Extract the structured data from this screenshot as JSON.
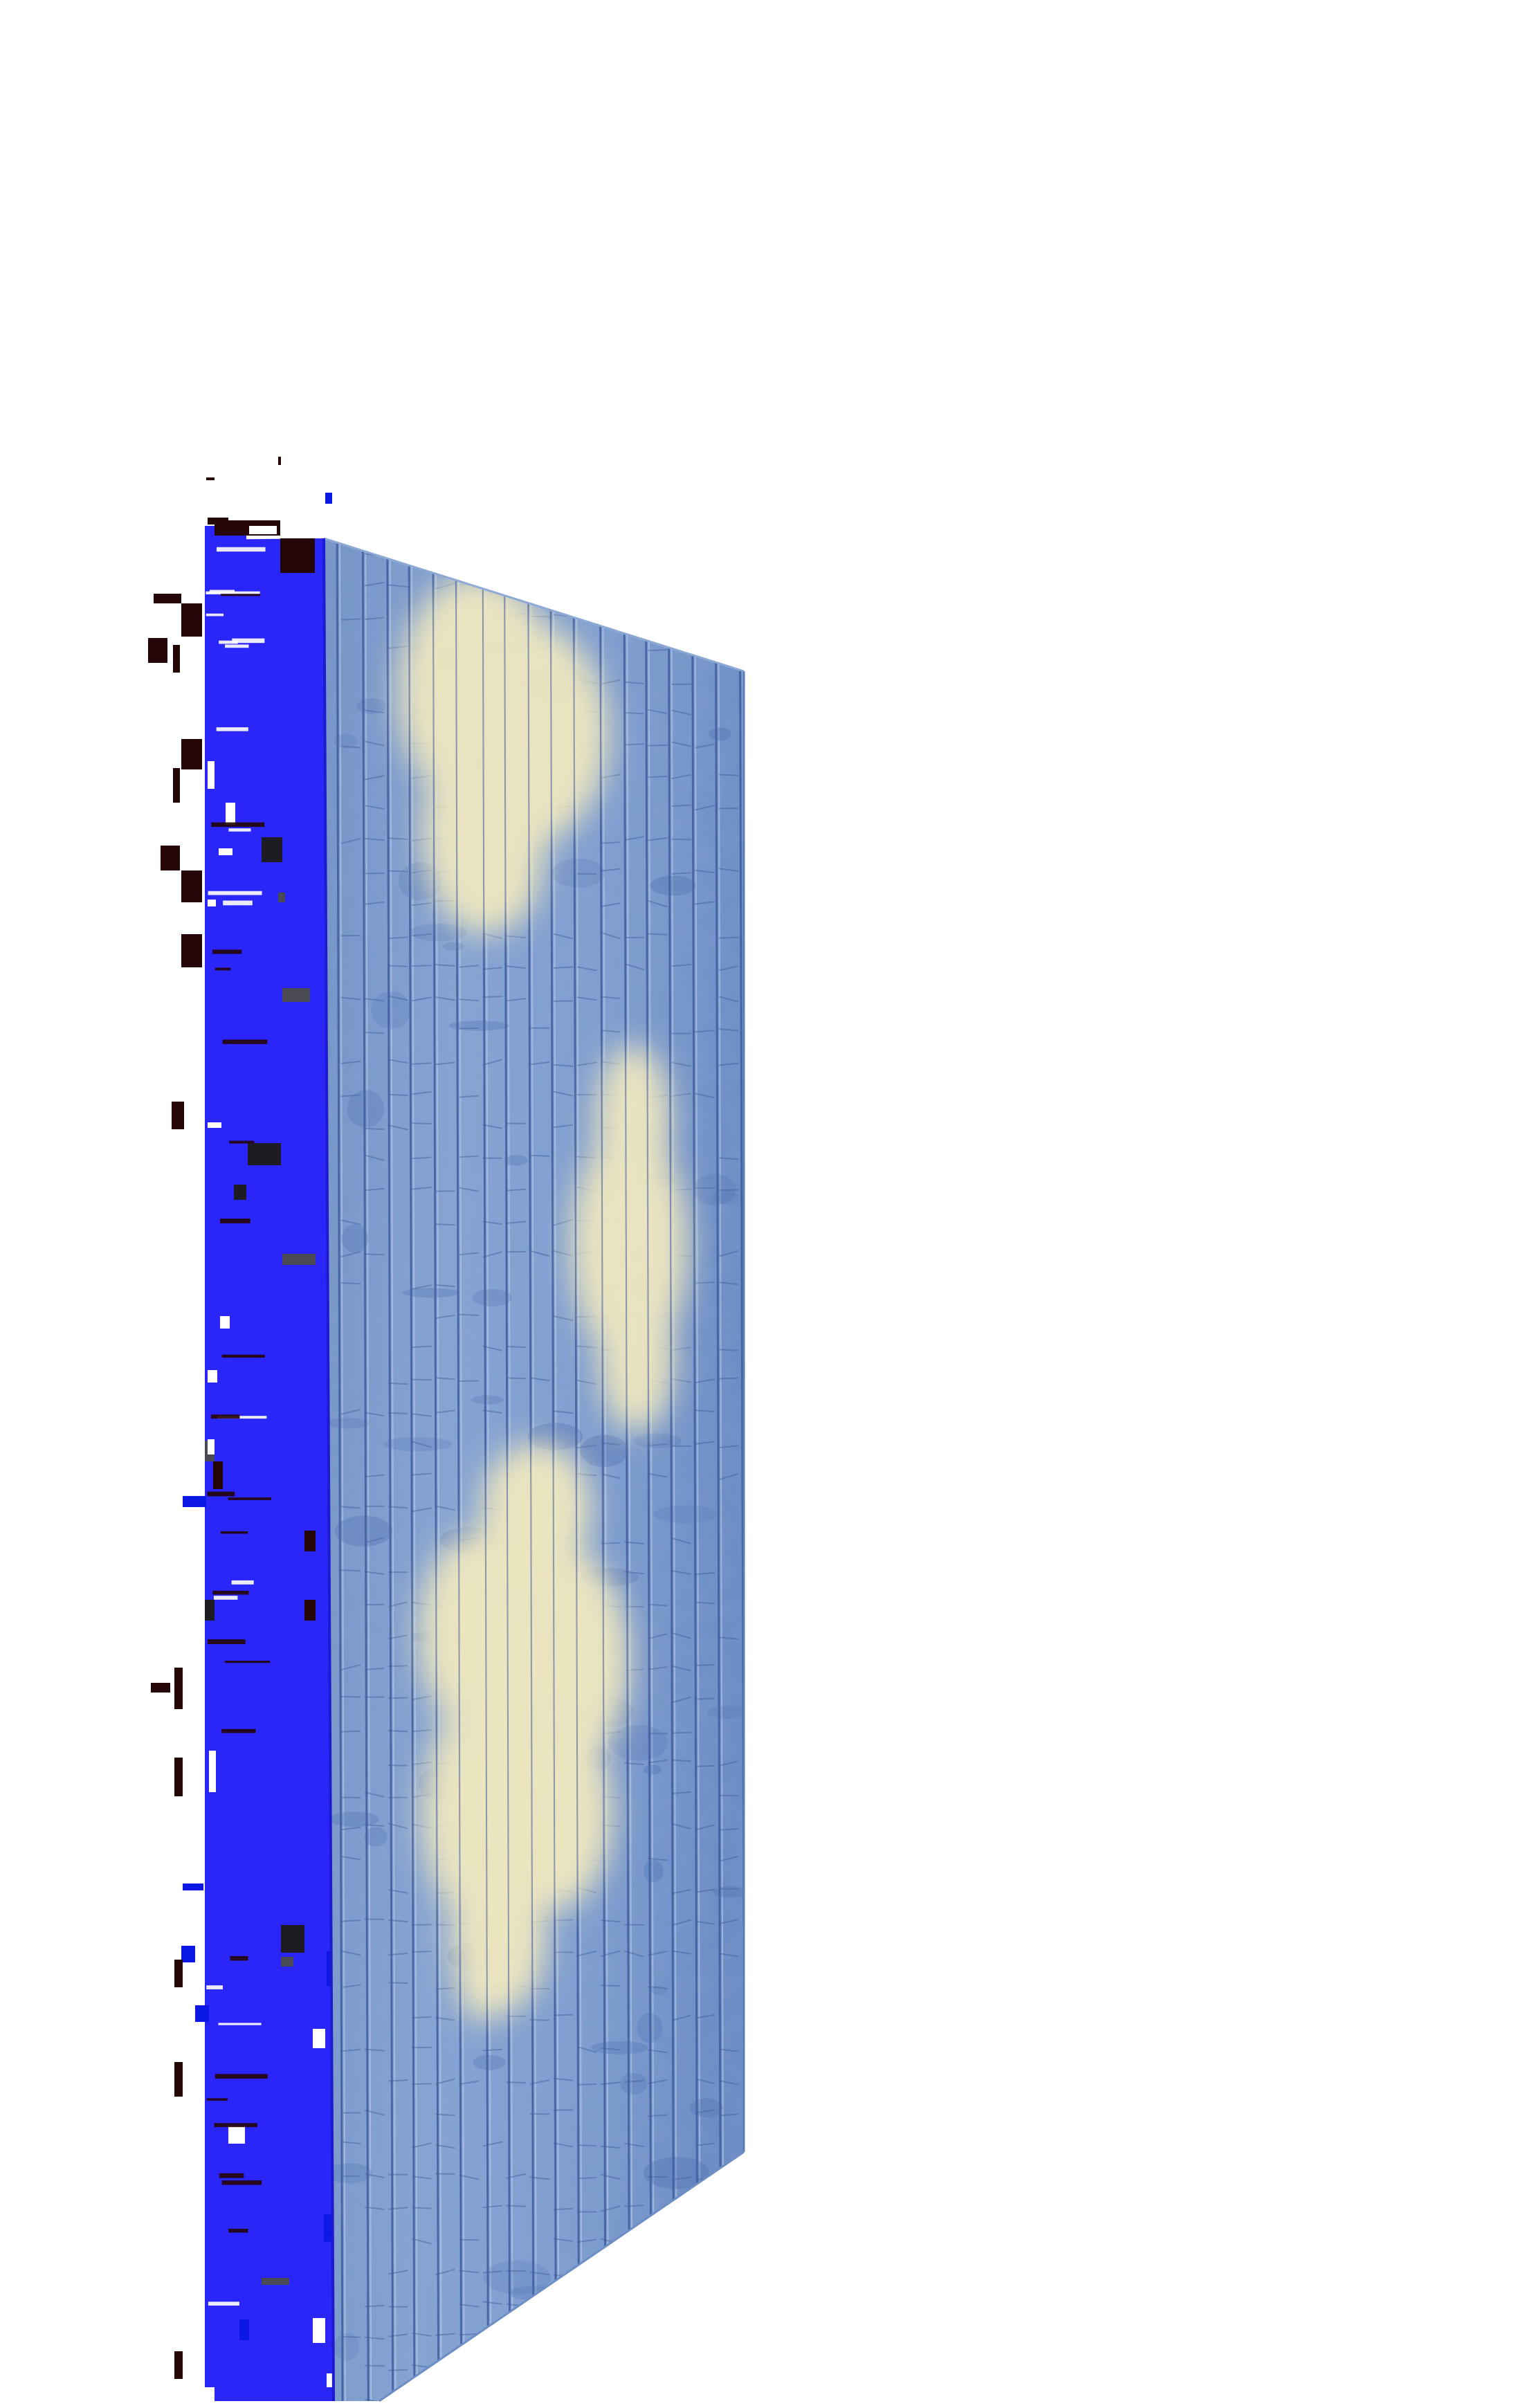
{
  "scene": {
    "subject": "panel",
    "colors": {
      "background": "#ffffff",
      "side_face": "#2a26fa",
      "front_face_light": "#86a6d2",
      "front_face_mid": "#6f90c4",
      "front_face_dark": "#4f6fb0",
      "brick_line": "#3e5c9e",
      "brick_highlight": "#b9cde8",
      "cloud": "#efe7bf",
      "cloud_shade": "#e2d7a6",
      "glitch_dark": "#250606",
      "glitch_gray": "#4a4a55",
      "glitch_black": "#1c1c22",
      "glitch_white": "#ffffff",
      "glitch_blue": "#0c18e6"
    }
  }
}
